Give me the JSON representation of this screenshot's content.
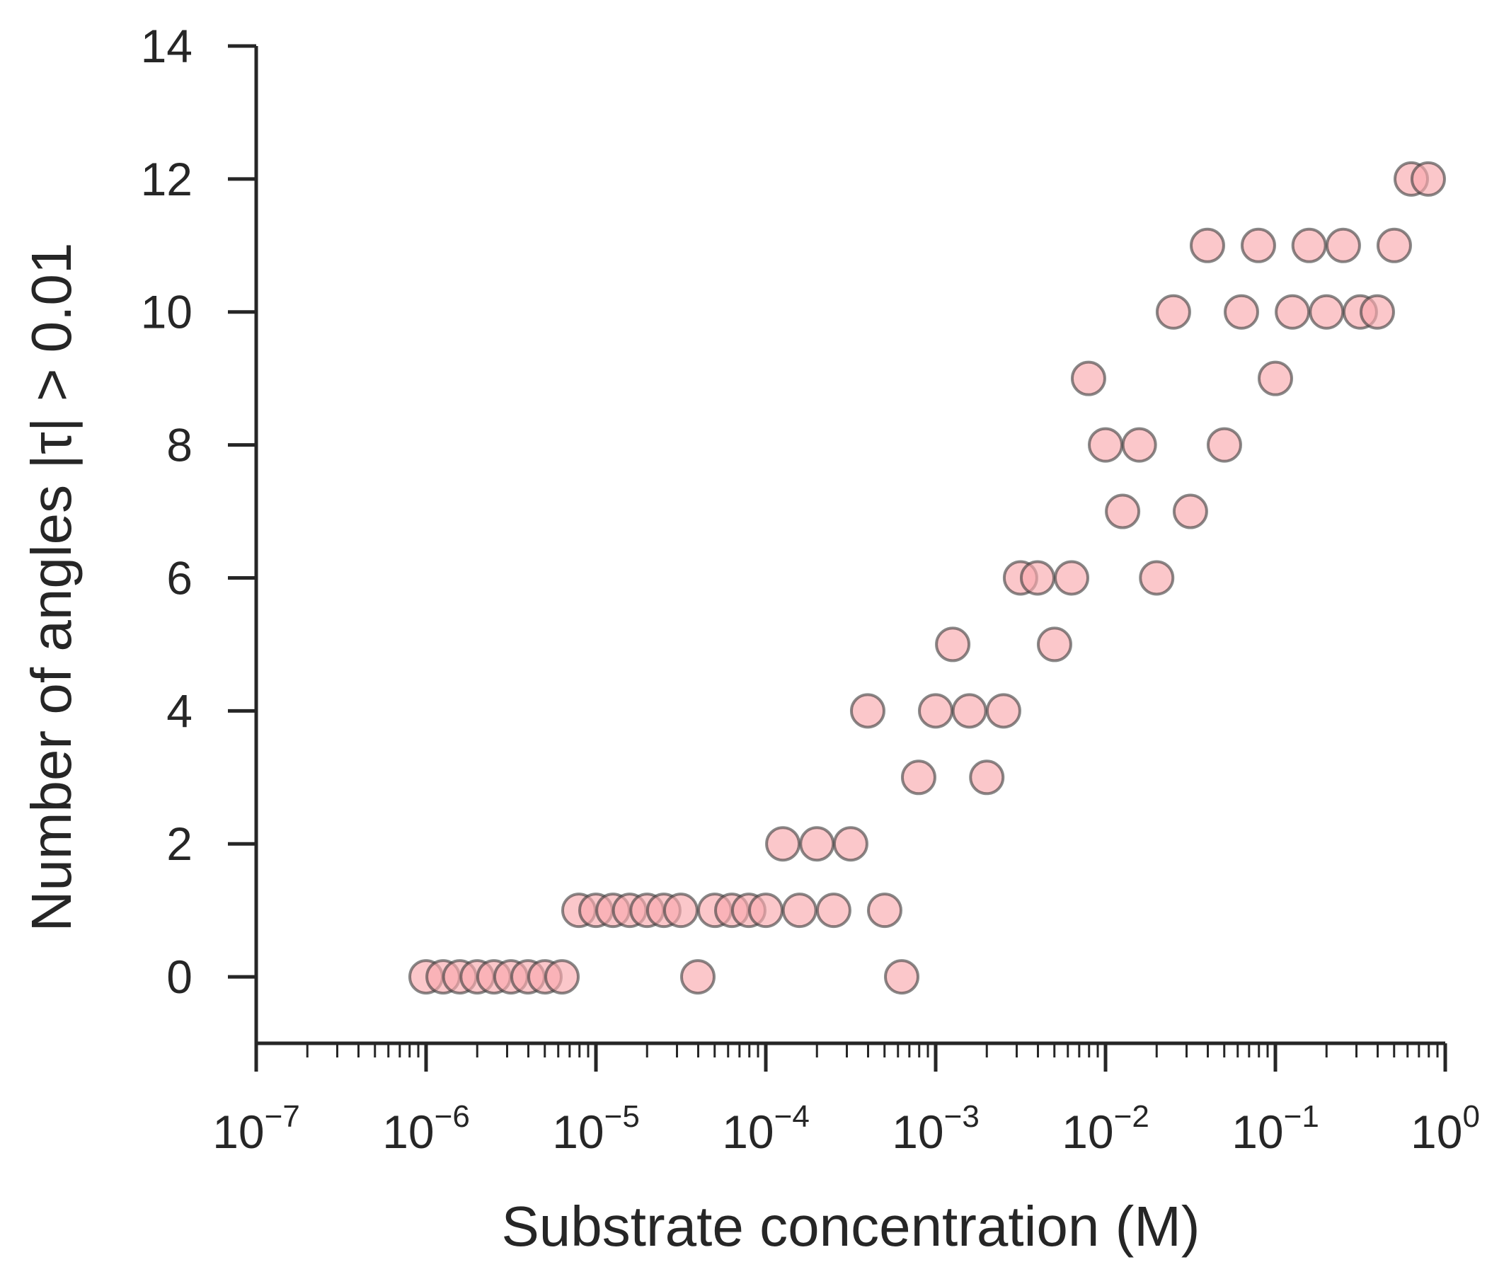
{
  "chart_data": {
    "type": "scatter",
    "title": "",
    "xlabel": "Substrate concentration (M)",
    "ylabel": "Number of angles |τ| > 0.01",
    "xscale": "log",
    "xlim": [
      1e-07,
      1
    ],
    "ylim": [
      -1,
      14
    ],
    "xticks": [
      {
        "base": "10",
        "exp": "−7",
        "value": 1e-07
      },
      {
        "base": "10",
        "exp": "−6",
        "value": 1e-06
      },
      {
        "base": "10",
        "exp": "−5",
        "value": 1e-05
      },
      {
        "base": "10",
        "exp": "−4",
        "value": 0.0001
      },
      {
        "base": "10",
        "exp": "−3",
        "value": 0.001
      },
      {
        "base": "10",
        "exp": "−2",
        "value": 0.01
      },
      {
        "base": "10",
        "exp": "−1",
        "value": 0.1
      },
      {
        "base": "10",
        "exp": "0",
        "value": 1
      }
    ],
    "yticks": [
      0,
      2,
      4,
      6,
      8,
      10,
      12,
      14
    ],
    "grid": false,
    "legend": "none",
    "marker_color": "#f9a9ad",
    "edge_color": "#3a3a3a",
    "series": [
      {
        "x": [
          1e-06,
          1.26e-06,
          1.58e-06,
          2e-06,
          2.51e-06,
          3.16e-06,
          3.98e-06,
          5.01e-06,
          6.31e-06,
          7.94e-06,
          1e-05,
          1.26e-05,
          1.58e-05,
          2e-05,
          2.51e-05,
          3.16e-05,
          3.98e-05,
          5.01e-05,
          6.31e-05,
          7.94e-05,
          0.0001,
          0.000126,
          0.000158,
          0.0002,
          0.000251,
          0.000316,
          0.000398,
          0.000501,
          0.000631,
          0.000794,
          0.001,
          0.00126,
          0.00158,
          0.002,
          0.00251,
          0.00316,
          0.00398,
          0.00501,
          0.00631,
          0.00794,
          0.01,
          0.0126,
          0.0158,
          0.02,
          0.0251,
          0.0316,
          0.0398,
          0.0501,
          0.0631,
          0.0794,
          0.1,
          0.126,
          0.158,
          0.2,
          0.251,
          0.316,
          0.398,
          0.501,
          0.631,
          0.794
        ],
        "y": [
          0,
          0,
          0,
          0,
          0,
          0,
          0,
          0,
          0,
          1,
          1,
          1,
          1,
          1,
          1,
          1,
          0,
          1,
          1,
          1,
          1,
          2,
          1,
          2,
          1,
          2,
          4,
          1,
          0,
          3,
          4,
          5,
          4,
          3,
          4,
          6,
          6,
          5,
          6,
          9,
          8,
          7,
          8,
          6,
          10,
          7,
          11,
          8,
          10,
          11,
          9,
          10,
          11,
          10,
          11,
          10,
          10,
          11,
          12,
          12
        ]
      }
    ]
  }
}
